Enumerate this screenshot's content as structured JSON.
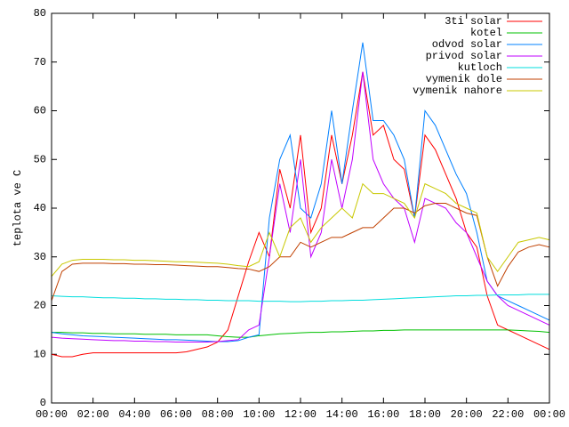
{
  "chart_data": {
    "type": "line",
    "ylabel": "teplota ve C",
    "x": [
      0,
      0.5,
      1,
      1.5,
      2,
      2.5,
      3,
      3.5,
      4,
      4.5,
      5,
      5.5,
      6,
      6.5,
      7,
      7.5,
      8,
      8.5,
      9,
      9.5,
      10,
      10.5,
      11,
      11.5,
      12,
      12.5,
      13,
      13.5,
      14,
      14.5,
      15,
      15.5,
      16,
      16.5,
      17,
      17.5,
      18,
      18.5,
      19,
      19.5,
      20,
      20.5,
      21,
      21.5,
      22,
      22.5,
      23,
      23.5,
      24
    ],
    "xlim": [
      0,
      24
    ],
    "xticks": [
      {
        "value": 0,
        "label": "00:00"
      },
      {
        "value": 2,
        "label": "02:00"
      },
      {
        "value": 4,
        "label": "04:00"
      },
      {
        "value": 6,
        "label": "06:00"
      },
      {
        "value": 8,
        "label": "08:00"
      },
      {
        "value": 10,
        "label": "10:00"
      },
      {
        "value": 12,
        "label": "12:00"
      },
      {
        "value": 14,
        "label": "14:00"
      },
      {
        "value": 16,
        "label": "16:00"
      },
      {
        "value": 18,
        "label": "18:00"
      },
      {
        "value": 20,
        "label": "20:00"
      },
      {
        "value": 22,
        "label": "22:00"
      },
      {
        "value": 24,
        "label": "00:00"
      }
    ],
    "ylim": [
      0,
      80
    ],
    "yticks": [
      0,
      10,
      20,
      30,
      40,
      50,
      60,
      70,
      80
    ],
    "legend": "top-right",
    "series": [
      {
        "name": "3ti solar",
        "color": "#ff0000",
        "values": [
          10,
          9.5,
          9.5,
          10,
          10.3,
          10.3,
          10.3,
          10.3,
          10.3,
          10.3,
          10.3,
          10.3,
          10.3,
          10.5,
          11,
          11.5,
          12.5,
          15,
          22,
          29,
          35,
          30,
          48,
          40,
          55,
          35,
          40,
          55,
          45,
          55,
          68,
          55,
          57,
          50,
          48,
          38,
          55,
          52,
          47,
          42,
          35,
          32,
          22,
          16,
          15,
          14,
          13,
          12,
          11
        ]
      },
      {
        "name": "kotel",
        "color": "#00c000",
        "values": [
          14.5,
          14.5,
          14.4,
          14.4,
          14.3,
          14.3,
          14.2,
          14.2,
          14.2,
          14.1,
          14.1,
          14.1,
          14,
          14,
          14,
          14,
          13.8,
          13.6,
          13.5,
          13.5,
          13.8,
          14,
          14.2,
          14.3,
          14.4,
          14.5,
          14.5,
          14.6,
          14.6,
          14.7,
          14.8,
          14.8,
          14.9,
          14.9,
          15,
          15,
          15,
          15,
          15,
          15,
          15,
          15,
          15,
          15,
          15,
          14.9,
          14.8,
          14.7,
          14.5
        ]
      },
      {
        "name": "odvod solar",
        "color": "#0080ff",
        "values": [
          14.5,
          14.2,
          14,
          13.8,
          13.7,
          13.6,
          13.5,
          13.4,
          13.3,
          13.2,
          13.1,
          13,
          13,
          12.9,
          12.8,
          12.7,
          12.6,
          12.6,
          12.8,
          13.5,
          14,
          38,
          50,
          55,
          40,
          38,
          45,
          60,
          45,
          60,
          74,
          58,
          58,
          55,
          50,
          38,
          60,
          57,
          52,
          47,
          43,
          35,
          25,
          22,
          21,
          20,
          19,
          18,
          17
        ]
      },
      {
        "name": "privod solar",
        "color": "#c000ff",
        "values": [
          13.5,
          13.3,
          13.2,
          13.1,
          13,
          12.9,
          12.8,
          12.8,
          12.7,
          12.7,
          12.6,
          12.6,
          12.5,
          12.5,
          12.5,
          12.5,
          12.6,
          12.8,
          13,
          15,
          16,
          30,
          45,
          35,
          50,
          30,
          35,
          50,
          40,
          50,
          68,
          50,
          45,
          42,
          40,
          33,
          42,
          41,
          40,
          37,
          35,
          30,
          25,
          22,
          20,
          19,
          18,
          17,
          16
        ]
      },
      {
        "name": "kutloch",
        "color": "#00dddd",
        "values": [
          22,
          21.9,
          21.8,
          21.8,
          21.7,
          21.6,
          21.6,
          21.5,
          21.5,
          21.4,
          21.4,
          21.3,
          21.3,
          21.2,
          21.2,
          21.1,
          21.1,
          21,
          21,
          21,
          20.9,
          20.9,
          20.9,
          20.8,
          20.8,
          20.9,
          20.9,
          21,
          21,
          21.1,
          21.1,
          21.2,
          21.3,
          21.4,
          21.5,
          21.6,
          21.7,
          21.8,
          21.9,
          22,
          22,
          22.1,
          22.1,
          22.2,
          22.2,
          22.2,
          22.3,
          22.3,
          22.3
        ]
      },
      {
        "name": "vymenik dole",
        "color": "#c04000",
        "values": [
          21,
          27,
          28.5,
          28.7,
          28.7,
          28.7,
          28.6,
          28.6,
          28.5,
          28.5,
          28.4,
          28.4,
          28.3,
          28.2,
          28.1,
          28,
          28,
          27.8,
          27.6,
          27.5,
          27,
          28,
          30,
          30,
          33,
          32,
          33,
          34,
          34,
          35,
          36,
          36,
          38,
          40,
          40,
          39,
          40.5,
          41,
          41,
          40,
          39,
          38.5,
          30,
          24,
          28,
          31,
          32,
          32.5,
          32
        ]
      },
      {
        "name": "vymenik nahore",
        "color": "#c8c800",
        "values": [
          26,
          28.5,
          29.3,
          29.5,
          29.5,
          29.5,
          29.4,
          29.4,
          29.3,
          29.3,
          29.2,
          29.1,
          29,
          29,
          28.9,
          28.8,
          28.7,
          28.5,
          28.2,
          28,
          29,
          35,
          30,
          36,
          38,
          33,
          36,
          38,
          40,
          38,
          45,
          43,
          43,
          42,
          41,
          38,
          45,
          44,
          43,
          41,
          40,
          39,
          30,
          27,
          30,
          33,
          33.5,
          34,
          33.5
        ]
      }
    ]
  }
}
